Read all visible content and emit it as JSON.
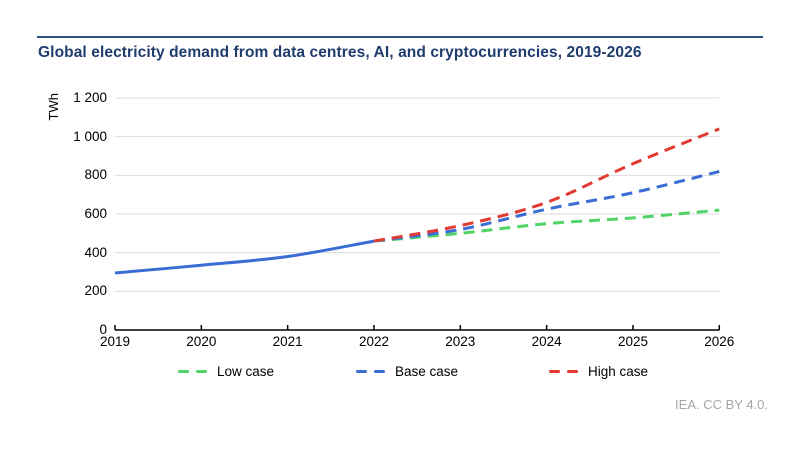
{
  "header": {
    "title": "Global electricity demand from data centres, AI, and cryptocurrencies, 2019-2026"
  },
  "footer": {
    "credit": "IEA. CC BY 4.0."
  },
  "colors": {
    "title_text": "#1f3c6d",
    "title_rule": "#2e5184",
    "gridline": "#dcdcdc",
    "axis": "#000000",
    "footer_text": "#a6a6a6",
    "historical_blue": "#3a6dd4",
    "low_green": "#50d468",
    "base_blue": "#3a6dd4",
    "high_red": "#e03a31"
  },
  "chart_data": {
    "type": "line",
    "title": "Global electricity demand from data centres, AI, and cryptocurrencies, 2019-2026",
    "xlabel": "",
    "ylabel": "TWh",
    "x_years": [
      2019,
      2020,
      2021,
      2022,
      2023,
      2024,
      2025,
      2026
    ],
    "ylim": [
      0,
      1200
    ],
    "yticks": {
      "values": [
        0,
        200,
        400,
        600,
        800,
        1000,
        1200
      ],
      "labels": [
        "0",
        "200",
        "400",
        "600",
        "800",
        "1 000",
        "1 200"
      ]
    },
    "grid": "horizontal",
    "legend_position": "bottom",
    "series": [
      {
        "key": "historical",
        "label": "",
        "style": "solid",
        "color": "#3a6dd4",
        "x": [
          2019,
          2020,
          2021,
          2022
        ],
        "values": [
          295,
          335,
          380,
          460
        ]
      },
      {
        "key": "low-case",
        "label": "Low case",
        "style": "dashed",
        "color": "#50d468",
        "x": [
          2022,
          2023,
          2024,
          2025,
          2026
        ],
        "values": [
          460,
          500,
          550,
          580,
          620
        ]
      },
      {
        "key": "base-case",
        "label": "Base case",
        "style": "dashed",
        "color": "#3a6dd4",
        "x": [
          2022,
          2023,
          2024,
          2025,
          2026
        ],
        "values": [
          460,
          520,
          625,
          710,
          820
        ]
      },
      {
        "key": "high-case",
        "label": "High case",
        "style": "dashed",
        "color": "#e03a31",
        "x": [
          2022,
          2023,
          2024,
          2025,
          2026
        ],
        "values": [
          460,
          540,
          660,
          860,
          1040
        ]
      }
    ],
    "legend": [
      {
        "label": "Low case",
        "color": "#50d468"
      },
      {
        "label": "Base case",
        "color": "#3a6dd4"
      },
      {
        "label": "High case",
        "color": "#e03a31"
      }
    ]
  }
}
